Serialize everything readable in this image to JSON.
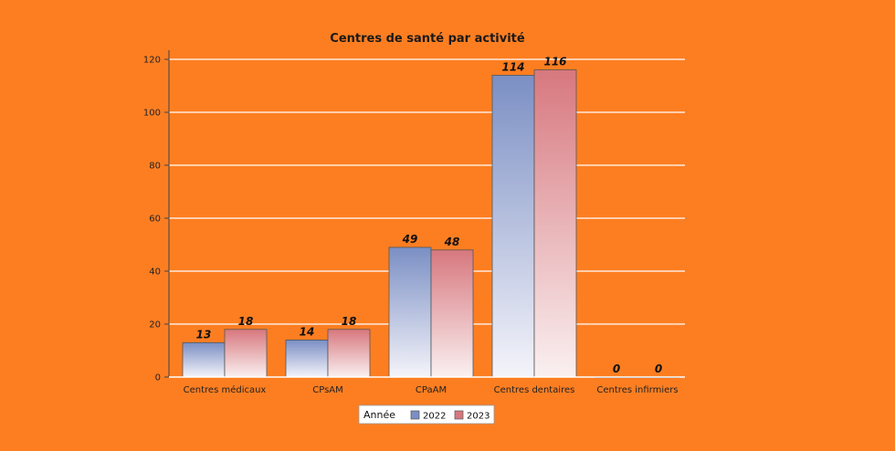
{
  "chart_data": {
    "type": "bar",
    "title": "Centres de santé par activité",
    "categories": [
      "Centres médicaux",
      "CPsAM",
      "CPaAM",
      "Centres dentaires",
      "Centres infirmiers"
    ],
    "series": [
      {
        "name": "2022",
        "values": [
          13,
          14,
          49,
          114,
          0
        ],
        "color": "#7b8fc4"
      },
      {
        "name": "2023",
        "values": [
          18,
          18,
          48,
          116,
          0
        ],
        "color": "#d7787e"
      }
    ],
    "ylim": [
      0,
      120
    ],
    "yticks": [
      0,
      20,
      40,
      60,
      80,
      100,
      120
    ],
    "legend": {
      "title": "Année",
      "position": "bottom-center"
    },
    "grid": true,
    "background": "#fd7e21",
    "gridline_color": "#ffffff"
  }
}
